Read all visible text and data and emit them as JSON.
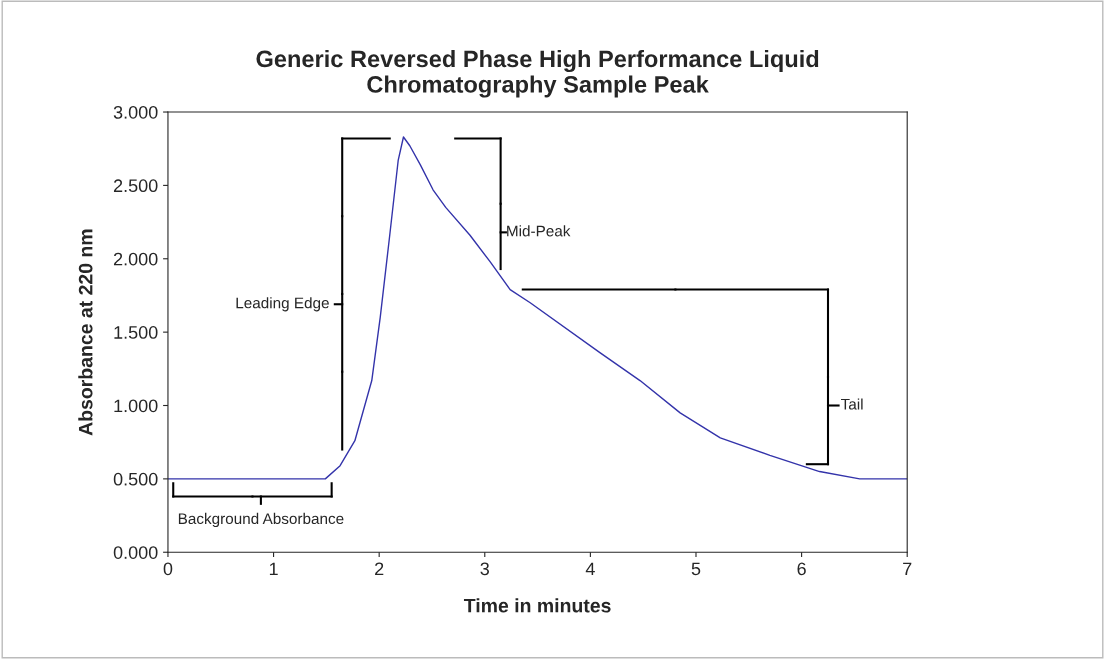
{
  "chart_data": {
    "type": "line",
    "title": "Generic Reversed Phase High Performance Liquid\nChromatography Sample Peak",
    "xlabel": "Time in minutes",
    "ylabel": "Absorbance at 220 nm",
    "x": [
      0,
      1.49,
      1.63,
      1.77,
      1.93,
      2.01,
      2.1,
      2.18,
      2.23,
      2.29,
      2.39,
      2.51,
      2.63,
      2.86,
      3.05,
      3.24,
      3.43,
      4.09,
      4.47,
      4.85,
      5.23,
      5.7,
      6.17,
      6.55,
      7.0
    ],
    "series": [
      {
        "color": "#3333aa",
        "values": [
          0.5,
          0.5,
          0.59,
          0.76,
          1.17,
          1.6,
          2.16,
          2.67,
          2.83,
          2.77,
          2.64,
          2.47,
          2.35,
          2.16,
          1.98,
          1.79,
          1.7,
          1.36,
          1.17,
          0.95,
          0.78,
          0.66,
          0.55,
          0.5,
          0.5
        ]
      }
    ],
    "xlim": [
      0,
      7
    ],
    "xticks": [
      0,
      1,
      2,
      3,
      4,
      5,
      6,
      7
    ],
    "ylim": [
      0,
      3
    ],
    "yticks": [
      {
        "value": 0,
        "label": "0.000"
      },
      {
        "value": 0.5,
        "label": "0.500"
      },
      {
        "value": 1,
        "label": "1.000"
      },
      {
        "value": 1.5,
        "label": "1.500"
      },
      {
        "value": 2,
        "label": "2.000"
      },
      {
        "value": 2.5,
        "label": "2.500"
      },
      {
        "value": 3,
        "label": "3.000"
      }
    ],
    "grid": false,
    "legend": false,
    "marker": "none",
    "line_style": "solid",
    "annotations": [
      "Background Absorbance",
      "Leading Edge",
      "Mid-Peak",
      "Tail"
    ]
  }
}
